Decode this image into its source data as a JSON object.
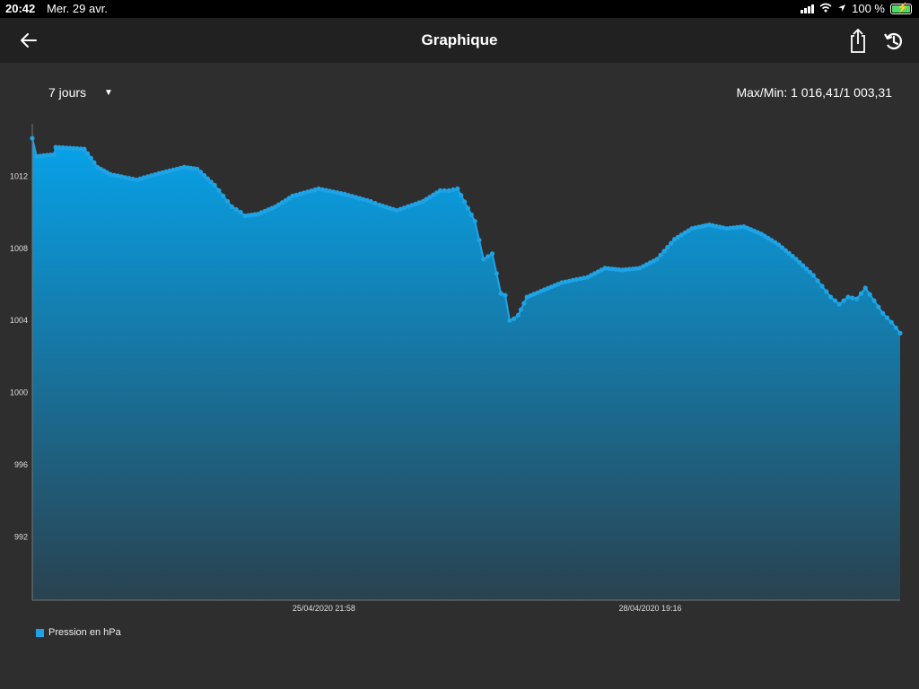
{
  "status_bar": {
    "time": "20:42",
    "date": "Mer. 29 avr.",
    "battery": "100 %"
  },
  "header": {
    "title": "Graphique",
    "icons": [
      "back-arrow-icon",
      "share-icon",
      "history-icon"
    ]
  },
  "controls": {
    "period": "7 jours",
    "maxmin": "Max/Min: 1 016,41/1 003,31"
  },
  "colors": {
    "series": "#1ea3e6",
    "background": "#2e2e2e",
    "header": "#212121"
  },
  "chart_data": {
    "type": "area",
    "title": "",
    "xlabel": "",
    "ylabel": "",
    "ylim": [
      988.5,
      1014.8
    ],
    "y_ticks": [
      992,
      996,
      1000,
      1004,
      1008,
      1012
    ],
    "x_ticks": [
      "25/04/2020 21:58",
      "28/04/2020 19:16"
    ],
    "x_tick_index": [
      0.336,
      0.712
    ],
    "grid": false,
    "legend": "bottom-left",
    "series": [
      {
        "name": "Pression en hPa",
        "x": [
          0,
          0.005,
          0.025,
          0.027,
          0.06,
          0.075,
          0.09,
          0.12,
          0.15,
          0.175,
          0.19,
          0.21,
          0.22,
          0.23,
          0.24,
          0.245,
          0.26,
          0.28,
          0.3,
          0.33,
          0.36,
          0.39,
          0.4,
          0.42,
          0.45,
          0.47,
          0.48,
          0.49,
          0.51,
          0.52,
          0.53,
          0.54,
          0.545,
          0.55,
          0.555,
          0.56,
          0.563,
          0.57,
          0.59,
          0.61,
          0.64,
          0.66,
          0.68,
          0.7,
          0.72,
          0.74,
          0.76,
          0.78,
          0.8,
          0.82,
          0.84,
          0.86,
          0.88,
          0.9,
          0.91,
          0.92,
          0.93,
          0.94,
          0.95,
          0.96,
          0.97,
          0.98,
          0.99,
          1.0
        ],
        "values": [
          1014.1,
          1013.1,
          1013.2,
          1013.6,
          1013.5,
          1012.5,
          1012.1,
          1011.8,
          1012.2,
          1012.5,
          1012.4,
          1011.5,
          1010.9,
          1010.3,
          1010.0,
          1009.8,
          1009.9,
          1010.3,
          1010.9,
          1011.3,
          1011.0,
          1010.6,
          1010.4,
          1010.1,
          1010.6,
          1011.2,
          1011.2,
          1011.3,
          1009.5,
          1007.4,
          1007.7,
          1005.5,
          1005.4,
          1004.0,
          1004.1,
          1004.3,
          1004.6,
          1005.3,
          1005.7,
          1006.1,
          1006.4,
          1006.9,
          1006.8,
          1006.9,
          1007.4,
          1008.5,
          1009.1,
          1009.3,
          1009.1,
          1009.2,
          1008.8,
          1008.2,
          1007.4,
          1006.5,
          1005.9,
          1005.3,
          1004.9,
          1005.3,
          1005.2,
          1005.8,
          1005.1,
          1004.4,
          1003.9,
          1003.3
        ]
      }
    ]
  }
}
